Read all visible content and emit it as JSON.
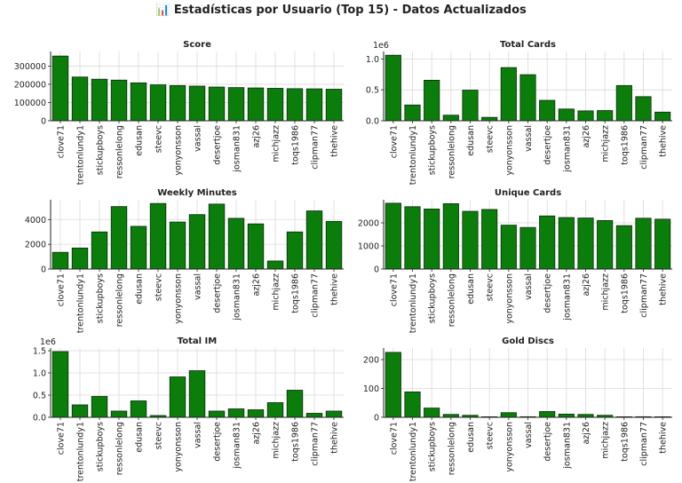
{
  "figure": {
    "title": "📊 Estadísticas por Usuario (Top 15) - Datos Actualizados"
  },
  "colors": {
    "bar_fill": "#0a7d0a",
    "bar_edge": "#0b2b0b",
    "grid": "#d9d9d9",
    "axis": "#222222"
  },
  "chart_data": [
    {
      "type": "bar",
      "title": "Score",
      "categories": [
        "clove71",
        "trentonlundy1",
        "stickupboys",
        "ressonlelong",
        "edusan",
        "steevc",
        "yonyonsson",
        "vassal",
        "desertjoe",
        "josman831",
        "azj26",
        "michjazz",
        "toqs1986",
        "clipman77",
        "thehive"
      ],
      "values": [
        355000,
        240000,
        228000,
        223000,
        208000,
        197000,
        193000,
        190000,
        185000,
        182000,
        180000,
        178000,
        176000,
        175000,
        173000
      ],
      "ylim": [
        0,
        380000
      ],
      "yticks": [
        0,
        100000,
        200000,
        300000
      ],
      "ytick_labels": [
        "0",
        "100000",
        "200000",
        "300000"
      ],
      "offset_text": "",
      "grid": true
    },
    {
      "type": "bar",
      "title": "Total Cards",
      "categories": [
        "clove71",
        "trentonlundy1",
        "stickupboys",
        "ressonlelong",
        "edusan",
        "steevc",
        "yonyonsson",
        "vassal",
        "desertjoe",
        "josman831",
        "azj26",
        "michjazz",
        "toqs1986",
        "clipman77",
        "thehive"
      ],
      "values": [
        1060000,
        255000,
        655000,
        90000,
        495000,
        55000,
        860000,
        745000,
        330000,
        190000,
        160000,
        165000,
        570000,
        390000,
        140000
      ],
      "ylim": [
        0,
        1120000
      ],
      "yticks": [
        0,
        500000,
        1000000
      ],
      "ytick_labels": [
        "0.0",
        "0.5",
        "1.0"
      ],
      "offset_text": "1e6",
      "grid": true
    },
    {
      "type": "bar",
      "title": "Weekly Minutes",
      "categories": [
        "clove71",
        "trentonlundy1",
        "stickupboys",
        "ressonlelong",
        "edusan",
        "steevc",
        "yonyonsson",
        "vassal",
        "desertjoe",
        "josman831",
        "azj26",
        "michjazz",
        "toqs1986",
        "clipman77",
        "thehive"
      ],
      "values": [
        1350,
        1700,
        3000,
        5050,
        3450,
        5300,
        3800,
        4400,
        5250,
        4100,
        3650,
        650,
        3000,
        4700,
        3850
      ],
      "ylim": [
        0,
        5600
      ],
      "yticks": [
        0,
        2000,
        4000
      ],
      "ytick_labels": [
        "0",
        "2000",
        "4000"
      ],
      "offset_text": "",
      "grid": true
    },
    {
      "type": "bar",
      "title": "Unique Cards",
      "categories": [
        "clove71",
        "trentonlundy1",
        "stickupboys",
        "ressonlelong",
        "edusan",
        "steevc",
        "yonyonsson",
        "vassal",
        "desertjoe",
        "josman831",
        "azj26",
        "michjazz",
        "toqs1986",
        "clipman77",
        "thehive"
      ],
      "values": [
        2850,
        2700,
        2600,
        2830,
        2500,
        2580,
        1900,
        1800,
        2300,
        2230,
        2210,
        2100,
        1880,
        2200,
        2160
      ],
      "ylim": [
        0,
        3000
      ],
      "yticks": [
        0,
        1000,
        2000
      ],
      "ytick_labels": [
        "0",
        "1000",
        "2000"
      ],
      "offset_text": "",
      "grid": true
    },
    {
      "type": "bar",
      "title": "Total IM",
      "categories": [
        "clove71",
        "trentonlundy1",
        "stickupboys",
        "ressonlelong",
        "edusan",
        "steevc",
        "yonyonsson",
        "vassal",
        "desertjoe",
        "josman831",
        "azj26",
        "michjazz",
        "toqs1986",
        "clipman77",
        "thehive"
      ],
      "values": [
        1480000,
        280000,
        470000,
        140000,
        370000,
        40000,
        910000,
        1050000,
        140000,
        190000,
        170000,
        330000,
        610000,
        90000,
        140000
      ],
      "ylim": [
        0,
        1560000
      ],
      "yticks": [
        0,
        500000,
        1000000,
        1500000
      ],
      "ytick_labels": [
        "0.0",
        "0.5",
        "1.0",
        "1.5"
      ],
      "offset_text": "1e6",
      "grid": true
    },
    {
      "type": "bar",
      "title": "Gold Discs",
      "categories": [
        "clove71",
        "trentonlundy1",
        "stickupboys",
        "ressonlelong",
        "edusan",
        "steevc",
        "yonyonsson",
        "vassal",
        "desertjoe",
        "josman831",
        "azj26",
        "michjazz",
        "toqs1986",
        "clipman77",
        "thehive"
      ],
      "values": [
        225,
        88,
        32,
        10,
        7,
        1,
        16,
        2,
        20,
        11,
        10,
        7,
        1,
        2,
        1
      ],
      "ylim": [
        0,
        240
      ],
      "yticks": [
        0,
        100,
        200
      ],
      "ytick_labels": [
        "0",
        "100",
        "200"
      ],
      "offset_text": "",
      "grid": true
    }
  ]
}
